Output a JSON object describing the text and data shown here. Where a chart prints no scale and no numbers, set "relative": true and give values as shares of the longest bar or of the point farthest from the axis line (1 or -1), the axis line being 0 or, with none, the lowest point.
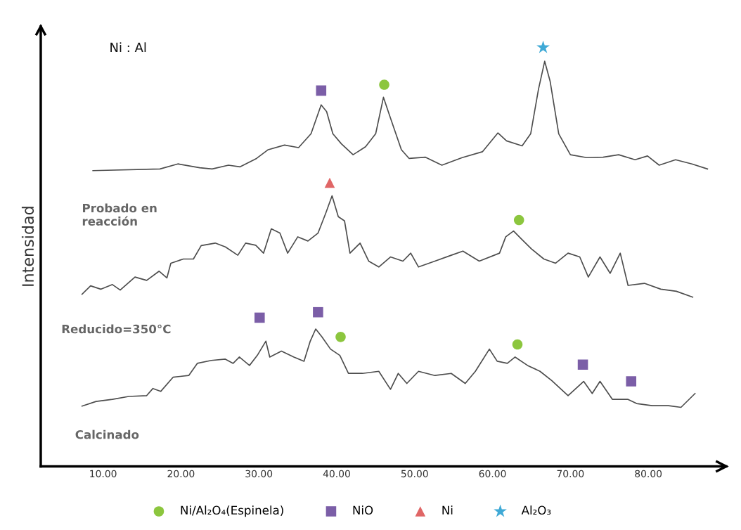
{
  "chart_data": {
    "type": "line",
    "relative": true,
    "ylabel": "Intensidad",
    "tick_labels": "x",
    "grid": false,
    "legend": "bottom",
    "marker": "none",
    "line_style": "solid",
    "xlim": [
      2,
      90
    ],
    "xticks": [
      {
        "value": 10,
        "label": "10.00"
      },
      {
        "value": 20,
        "label": "20.00"
      },
      {
        "value": 30,
        "label": "30.00"
      },
      {
        "value": 40,
        "label": "40.00"
      },
      {
        "value": 50,
        "label": "50.00"
      },
      {
        "value": 60,
        "label": "60.00"
      },
      {
        "value": 70,
        "label": "70.00"
      },
      {
        "value": 80,
        "label": "80.00"
      }
    ],
    "annotations": [
      "Ni : Al",
      "Probado en\nreacción",
      "Reducido=350°C",
      "Calcinado"
    ],
    "series": [
      {
        "color": "#4d4d4d",
        "x": [
          8.7,
          17.3,
          19.6,
          22.4,
          24.0,
          26.1,
          27.6,
          29.7,
          31.2,
          33.3,
          35.1,
          36.7,
          38.0,
          38.7,
          39.5,
          40.6,
          42.1,
          43.7,
          45.0,
          46.0,
          46.8,
          48.3,
          49.3,
          51.4,
          53.5,
          56.1,
          58.7,
          60.7,
          61.8,
          63.8,
          64.9,
          65.9,
          66.7,
          67.4,
          68.5,
          70.0,
          72.1,
          74.2,
          76.2,
          78.3,
          79.9,
          81.4,
          83.5,
          85.6,
          87.6
        ],
        "values": [
          0.706,
          0.71,
          0.722,
          0.713,
          0.71,
          0.719,
          0.715,
          0.735,
          0.756,
          0.767,
          0.761,
          0.794,
          0.863,
          0.847,
          0.794,
          0.77,
          0.744,
          0.763,
          0.794,
          0.881,
          0.837,
          0.756,
          0.735,
          0.738,
          0.719,
          0.737,
          0.751,
          0.796,
          0.777,
          0.765,
          0.794,
          0.9,
          0.967,
          0.919,
          0.794,
          0.744,
          0.737,
          0.738,
          0.744,
          0.732,
          0.741,
          0.719,
          0.732,
          0.722,
          0.71
        ]
      },
      {
        "color": "#4d4d4d",
        "x": [
          7.3,
          8.4,
          9.7,
          11.2,
          12.2,
          14.1,
          15.6,
          17.2,
          18.2,
          18.7,
          20.3,
          21.6,
          22.6,
          24.4,
          25.7,
          27.3,
          28.3,
          29.6,
          30.6,
          31.6,
          32.7,
          33.7,
          35.0,
          36.3,
          37.6,
          38.6,
          39.4,
          40.2,
          41.0,
          41.7,
          43.0,
          44.1,
          45.4,
          46.9,
          48.5,
          49.5,
          50.5,
          52.6,
          54.7,
          56.2,
          58.3,
          60.9,
          61.7,
          62.7,
          63.7,
          65.0,
          66.6,
          68.1,
          69.7,
          71.2,
          72.3,
          73.8,
          75.1,
          76.4,
          77.4,
          79.5,
          81.6,
          83.6,
          85.7
        ],
        "values": [
          0.411,
          0.431,
          0.423,
          0.434,
          0.421,
          0.452,
          0.444,
          0.466,
          0.45,
          0.485,
          0.495,
          0.495,
          0.527,
          0.533,
          0.524,
          0.504,
          0.533,
          0.528,
          0.509,
          0.567,
          0.557,
          0.509,
          0.548,
          0.538,
          0.557,
          0.605,
          0.646,
          0.596,
          0.586,
          0.509,
          0.533,
          0.49,
          0.476,
          0.5,
          0.49,
          0.509,
          0.476,
          0.49,
          0.504,
          0.514,
          0.49,
          0.509,
          0.548,
          0.562,
          0.543,
          0.519,
          0.495,
          0.485,
          0.509,
          0.5,
          0.452,
          0.5,
          0.461,
          0.509,
          0.432,
          0.437,
          0.423,
          0.418,
          0.404
        ]
      },
      {
        "color": "#4d4d4d",
        "x": [
          7.3,
          9.1,
          11.2,
          13.3,
          15.6,
          16.4,
          17.4,
          19.0,
          21.0,
          22.1,
          23.9,
          25.7,
          26.7,
          27.5,
          28.8,
          29.8,
          30.9,
          31.4,
          32.9,
          34.5,
          35.8,
          36.6,
          37.3,
          38.1,
          39.2,
          40.4,
          41.5,
          43.3,
          45.4,
          46.9,
          47.9,
          49.0,
          50.5,
          52.6,
          54.7,
          56.5,
          57.8,
          59.6,
          60.6,
          61.9,
          62.9,
          64.5,
          66.1,
          67.6,
          69.7,
          71.7,
          72.8,
          73.8,
          75.4,
          77.4,
          78.5,
          80.5,
          82.6,
          84.2,
          86.0
        ],
        "values": [
          0.144,
          0.155,
          0.16,
          0.167,
          0.169,
          0.186,
          0.179,
          0.213,
          0.217,
          0.246,
          0.253,
          0.256,
          0.246,
          0.261,
          0.241,
          0.265,
          0.299,
          0.261,
          0.275,
          0.261,
          0.251,
          0.299,
          0.328,
          0.309,
          0.28,
          0.265,
          0.222,
          0.222,
          0.227,
          0.184,
          0.222,
          0.198,
          0.227,
          0.217,
          0.222,
          0.198,
          0.227,
          0.28,
          0.251,
          0.246,
          0.261,
          0.241,
          0.227,
          0.205,
          0.169,
          0.203,
          0.174,
          0.203,
          0.16,
          0.16,
          0.15,
          0.145,
          0.145,
          0.141,
          0.174
        ]
      },
      {
        "type": "scatter",
        "name": "Ni/Al₂O₄(Espinela)",
        "color": "#8cc63e",
        "marker": "circle",
        "x": [
          46.1,
          63.4,
          40.5,
          63.2
        ],
        "values": [
          0.911,
          0.588,
          0.309,
          0.291
        ]
      },
      {
        "type": "scatter",
        "name": "NiO",
        "color": "#7b5ea7",
        "marker": "square",
        "x": [
          38.0,
          30.1,
          37.6,
          71.6,
          77.8
        ],
        "values": [
          0.897,
          0.355,
          0.368,
          0.243,
          0.203
        ]
      },
      {
        "type": "scatter",
        "name": "Ni",
        "color": "#e06666",
        "marker": "triangle",
        "x": [
          39.1
        ],
        "values": [
          0.677
        ]
      },
      {
        "type": "scatter",
        "name": "Al₂O₃",
        "color": "#3fa9d6",
        "marker": "star",
        "x": [
          66.5
        ],
        "values": [
          1.0
        ]
      }
    ]
  }
}
